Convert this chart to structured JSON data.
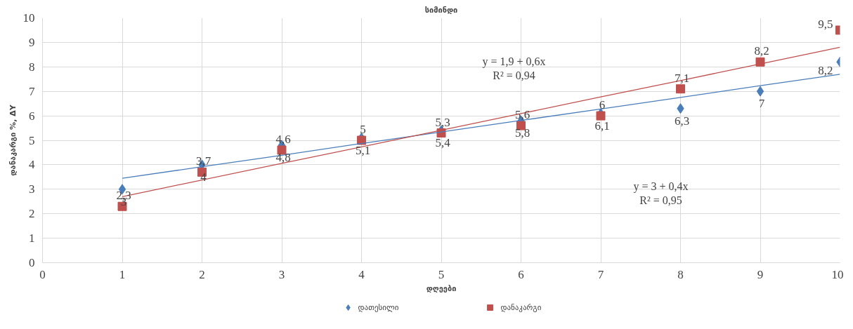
{
  "chart_data": {
    "type": "scatter",
    "title": "სიმინდი",
    "xlabel": "დღეები",
    "ylabel": "დანაკარგი %, ΔY",
    "x": [
      1,
      2,
      3,
      4,
      5,
      6,
      7,
      8,
      9,
      10
    ],
    "series": [
      {
        "name": "დათესილი",
        "color": "#4a7ebb",
        "marker": "diamond",
        "values": [
          3,
          4,
          4.8,
          5.1,
          5.4,
          5.8,
          6.1,
          6.3,
          7,
          8.2
        ],
        "value_labels": [
          "3",
          "4",
          "4,8",
          "5,1",
          "5,4",
          "5,8",
          "6,1",
          "6,3",
          "7",
          "8,2"
        ]
      },
      {
        "name": "დანაკარგი",
        "color": "#c0504d",
        "marker": "square",
        "values": [
          2.3,
          3.7,
          4.6,
          5,
          5.3,
          5.6,
          6,
          7.1,
          8.2,
          9.5
        ],
        "value_labels": [
          "2,3",
          "3,7",
          "4,6",
          "5",
          "5,3",
          "5,6",
          "6",
          "7,1",
          "8,2",
          "9,5"
        ]
      },
      {
        "type": "line",
        "color": "#4a7ebb",
        "values": [
          3.45,
          3.92,
          4.39,
          4.87,
          5.34,
          5.81,
          6.28,
          6.75,
          7.23,
          7.7
        ]
      },
      {
        "type": "line",
        "color": "#c0504d",
        "values": [
          2.7,
          3.38,
          4.06,
          4.73,
          5.41,
          6.09,
          6.77,
          7.44,
          8.12,
          8.8
        ]
      }
    ],
    "annotations": [
      "y = 1,9 + 0,6x\nR² = 0,94",
      "y = 3 + 0,4x\nR² = 0,95"
    ],
    "xlim": [
      0,
      10
    ],
    "ylim": [
      0,
      10
    ],
    "xticks": [
      0,
      1,
      2,
      3,
      4,
      5,
      6,
      7,
      8,
      9,
      10
    ],
    "yticks": [
      0,
      1,
      2,
      3,
      4,
      5,
      6,
      7,
      8,
      9,
      10
    ],
    "grid": true,
    "legend": "bottom"
  }
}
